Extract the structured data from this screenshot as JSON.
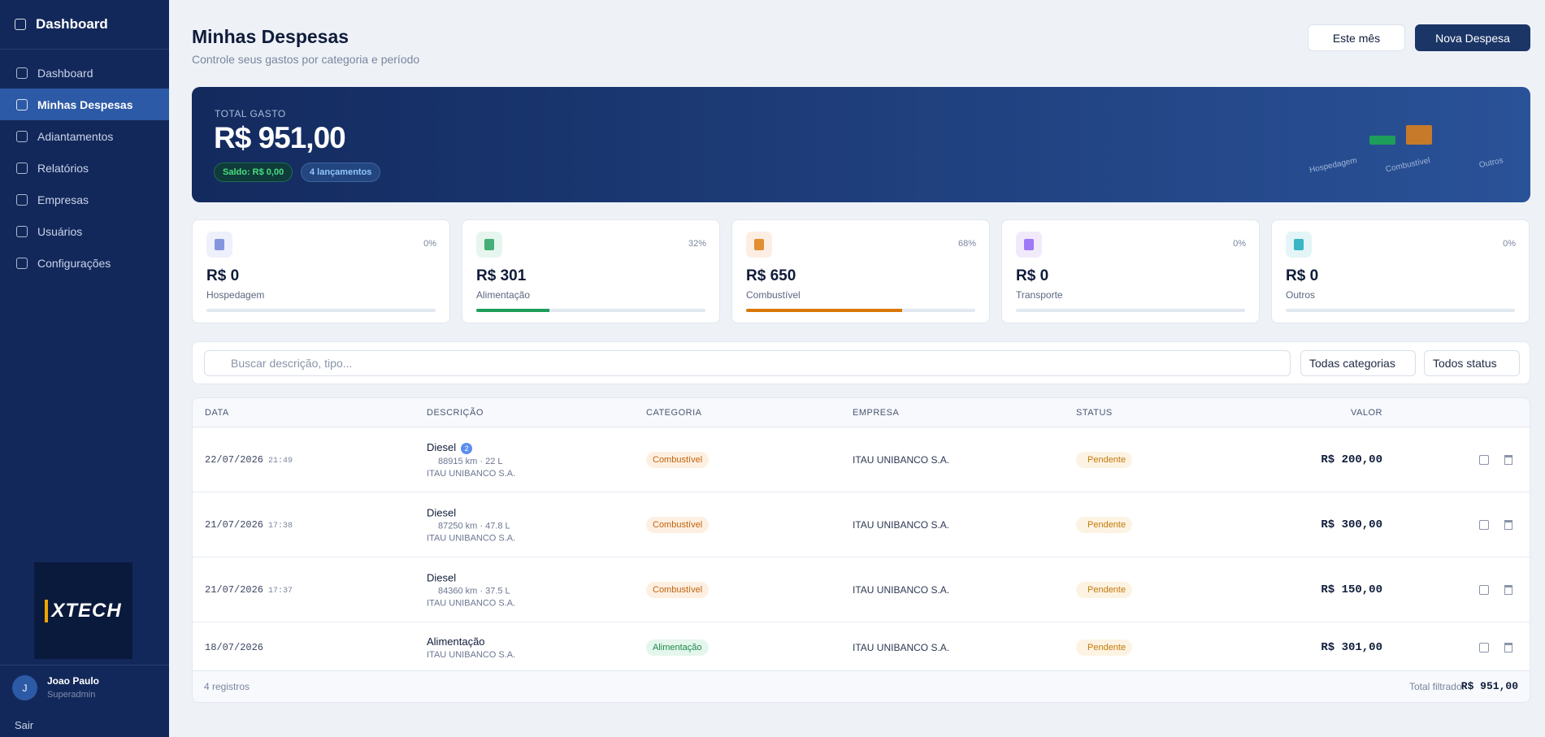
{
  "sidebar": {
    "brand": "Dashboard",
    "menu": [
      "Dashboard",
      "Minhas Despesas",
      "Adiantamentos",
      "Relatórios",
      "Empresas",
      "Usuários",
      "Configurações"
    ],
    "active": 1,
    "logo": "XTECH",
    "user": {
      "initial": "J",
      "name": "Joao Paulo",
      "role": "Superadmin"
    },
    "logout": "Sair"
  },
  "header": {
    "title": "Minhas Despesas",
    "subtitle": "Controle seus gastos por categoria e período",
    "period": "Este mês",
    "new_button": "Nova Despesa"
  },
  "summary": {
    "label": "TOTAL GASTO",
    "total": "R$ 951,00",
    "balance": "Saldo: R$ 0,00",
    "entries": "4 lançamentos",
    "mini_chart": {
      "type": "bar",
      "categories": [
        "Hospedagem",
        null,
        "Combustível",
        null,
        "Outros"
      ],
      "values": [
        0,
        301,
        650,
        0,
        0
      ],
      "colors": [
        "#6b7fd7",
        "#1e9e5a",
        "#c77a2a",
        "#8b5cf6",
        "#0ea5b7"
      ],
      "ylim": [
        0,
        650
      ]
    }
  },
  "cards": [
    {
      "amount": "R$ 0",
      "label": "Hospedagem",
      "percent_label": "0%",
      "percent": 0,
      "color": "#6b7fd7",
      "icon_bg": "#eef0fb"
    },
    {
      "amount": "R$ 301",
      "label": "Alimentação",
      "percent_label": "32%",
      "percent": 32,
      "color": "#1e9e5a",
      "icon_bg": "#e6f6ee"
    },
    {
      "amount": "R$ 650",
      "label": "Combustível",
      "percent_label": "68%",
      "percent": 68,
      "color": "#d97706",
      "icon_bg": "#fdeee4"
    },
    {
      "amount": "R$ 0",
      "label": "Transporte",
      "percent_label": "0%",
      "percent": 0,
      "color": "#8b5cf6",
      "icon_bg": "#f1eafb"
    },
    {
      "amount": "R$ 0",
      "label": "Outros",
      "percent_label": "0%",
      "percent": 0,
      "color": "#0ea5b7",
      "icon_bg": "#e4f5f7"
    }
  ],
  "filters": {
    "search_placeholder": "Buscar descrição, tipo...",
    "category": "Todas categorias",
    "status": "Todos status"
  },
  "table": {
    "columns": [
      "DATA",
      "DESCRIÇÃO",
      "CATEGORIA",
      "EMPRESA",
      "STATUS",
      "VALOR"
    ],
    "rows": [
      {
        "date": "22/07/2026",
        "time": "21:49",
        "description": "Diesel",
        "attachments": "2",
        "details": "88915 km · 22 L",
        "company_line": "ITAU UNIBANCO S.A.",
        "category": "Combustível",
        "company": "ITAU UNIBANCO S.A.",
        "status": "Pendente",
        "value": "R$ 200,00"
      },
      {
        "date": "21/07/2026",
        "time": "17:38",
        "description": "Diesel",
        "details": "87250 km · 47.8 L",
        "company_line": "ITAU UNIBANCO S.A.",
        "category": "Combustível",
        "company": "ITAU UNIBANCO S.A.",
        "status": "Pendente",
        "value": "R$ 300,00"
      },
      {
        "date": "21/07/2026",
        "time": "17:37",
        "description": "Diesel",
        "details": "84360 km · 37.5 L",
        "company_line": "ITAU UNIBANCO S.A.",
        "category": "Combustível",
        "company": "ITAU UNIBANCO S.A.",
        "status": "Pendente",
        "value": "R$ 150,00"
      },
      {
        "date": "18/07/2026",
        "description": "Alimentação",
        "company_line": "ITAU UNIBANCO S.A.",
        "category": "Alimentação",
        "company": "ITAU UNIBANCO S.A.",
        "status": "Pendente",
        "value": "R$ 301,00"
      }
    ],
    "count": "4 registros",
    "total_label": "Total filtrado:",
    "total": "R$ 951,00"
  }
}
